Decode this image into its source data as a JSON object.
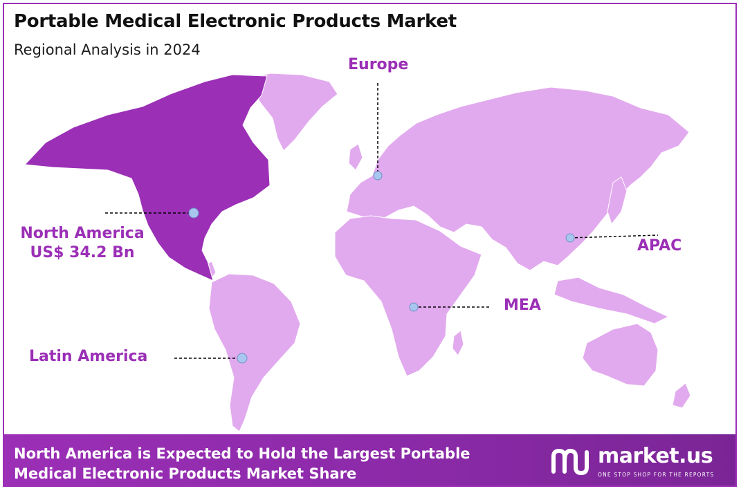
{
  "header": {
    "title": "Portable Medical Electronic Products Market",
    "subtitle": "Regional Analysis in 2024"
  },
  "regions": {
    "north_america": {
      "name": "North America",
      "value": "US$ 34.2 Bn",
      "highlighted": true
    },
    "europe": {
      "name": "Europe",
      "highlighted": false
    },
    "apac": {
      "name": "APAC",
      "highlighted": false
    },
    "mea": {
      "name": "MEA",
      "highlighted": false
    },
    "latin_america": {
      "name": "Latin America",
      "highlighted": false
    }
  },
  "footer": {
    "line1": "North America is Expected to Hold the Largest Portable",
    "line2": "Medical Electronic Products Market Share"
  },
  "brand": {
    "name": "market.us",
    "tagline": "ONE STOP SHOP FOR THE REPORTS",
    "logo_icon": "market-us-logo-icon"
  },
  "colors": {
    "highlight": "#9b2fb6",
    "land": "#e2aaee",
    "marker": "#a9c6ef",
    "footer": "#9b2fb6"
  }
}
